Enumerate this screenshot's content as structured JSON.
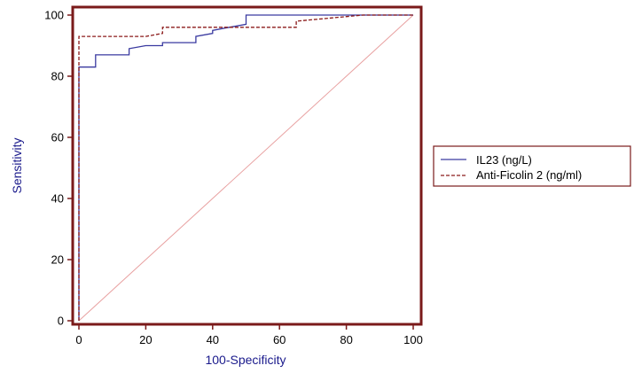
{
  "chart_data": {
    "type": "line",
    "title": "",
    "xlabel": "100-Specificity",
    "ylabel": "Sensitivity",
    "xlim": [
      0,
      100
    ],
    "ylim": [
      0,
      100
    ],
    "x_ticks": [
      0,
      20,
      40,
      60,
      80,
      100
    ],
    "y_ticks": [
      0,
      20,
      40,
      60,
      80,
      100
    ],
    "grid": false,
    "legend_position": "right",
    "reference_line": {
      "x": [
        0,
        100
      ],
      "y": [
        0,
        100
      ],
      "color": "#e8a0a0"
    },
    "series": [
      {
        "name": "IL23 (ng/L)",
        "style": "solid",
        "color": "#3a3aa0",
        "x": [
          0,
          0,
          5,
          5,
          15,
          15,
          20,
          25,
          25,
          35,
          35,
          40,
          40,
          45,
          50,
          50,
          85,
          100
        ],
        "y": [
          0,
          83,
          83,
          87,
          87,
          89,
          90,
          90,
          91,
          91,
          93,
          94,
          95,
          96,
          97,
          100,
          100,
          100
        ]
      },
      {
        "name": "Anti-Ficolin 2 (ng/ml)",
        "style": "dashed",
        "color": "#8b1a1a",
        "x": [
          0,
          0,
          20,
          25,
          25,
          65,
          65,
          85,
          100
        ],
        "y": [
          0,
          93,
          93,
          94,
          96,
          96,
          98,
          100,
          100
        ]
      }
    ]
  }
}
